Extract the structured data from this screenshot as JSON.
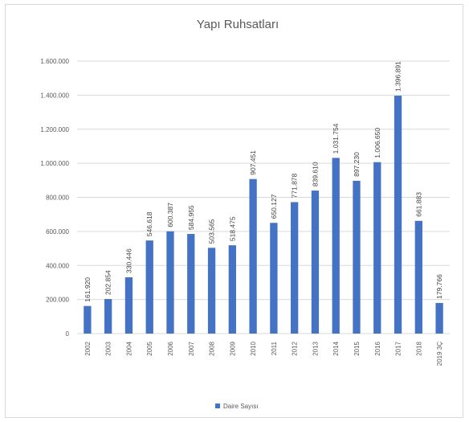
{
  "chart_data": {
    "type": "bar",
    "title": "Yapı Ruhsatları",
    "categories": [
      "2002",
      "2003",
      "2004",
      "2005",
      "2006",
      "2007",
      "2008",
      "2009",
      "2010",
      "2011",
      "2012",
      "2013",
      "2014",
      "2015",
      "2016",
      "2017",
      "2018",
      "2019 3Ç"
    ],
    "series": [
      {
        "name": "Daire Sayısı",
        "values": [
          161920,
          202854,
          330446,
          546618,
          600387,
          584955,
          503565,
          518475,
          907451,
          650127,
          771878,
          839610,
          1031754,
          897230,
          1006650,
          1396891,
          661883,
          179766
        ],
        "labels": [
          "161.920",
          "202.854",
          "330.446",
          "546.618",
          "600.387",
          "584.955",
          "503.565",
          "518.475",
          "907.451",
          "650.127",
          "771.878",
          "839.610",
          "1.031.754",
          "897.230",
          "1.006.650",
          "1.396.891",
          "661.883",
          "179.766"
        ]
      }
    ],
    "ylim": [
      0,
      1600000
    ],
    "yticks": [
      0,
      200000,
      400000,
      600000,
      800000,
      1000000,
      1200000,
      1400000,
      1600000
    ],
    "ytick_labels": [
      "0",
      "200.000",
      "400.000",
      "600.000",
      "800.000",
      "1.000.000",
      "1.200.000",
      "1.400.000",
      "1.600.000"
    ],
    "grid": true,
    "legend_position": "bottom",
    "colors": {
      "bar": "#4472c4",
      "grid": "#d9d9d9",
      "axis_text": "#595959"
    }
  }
}
